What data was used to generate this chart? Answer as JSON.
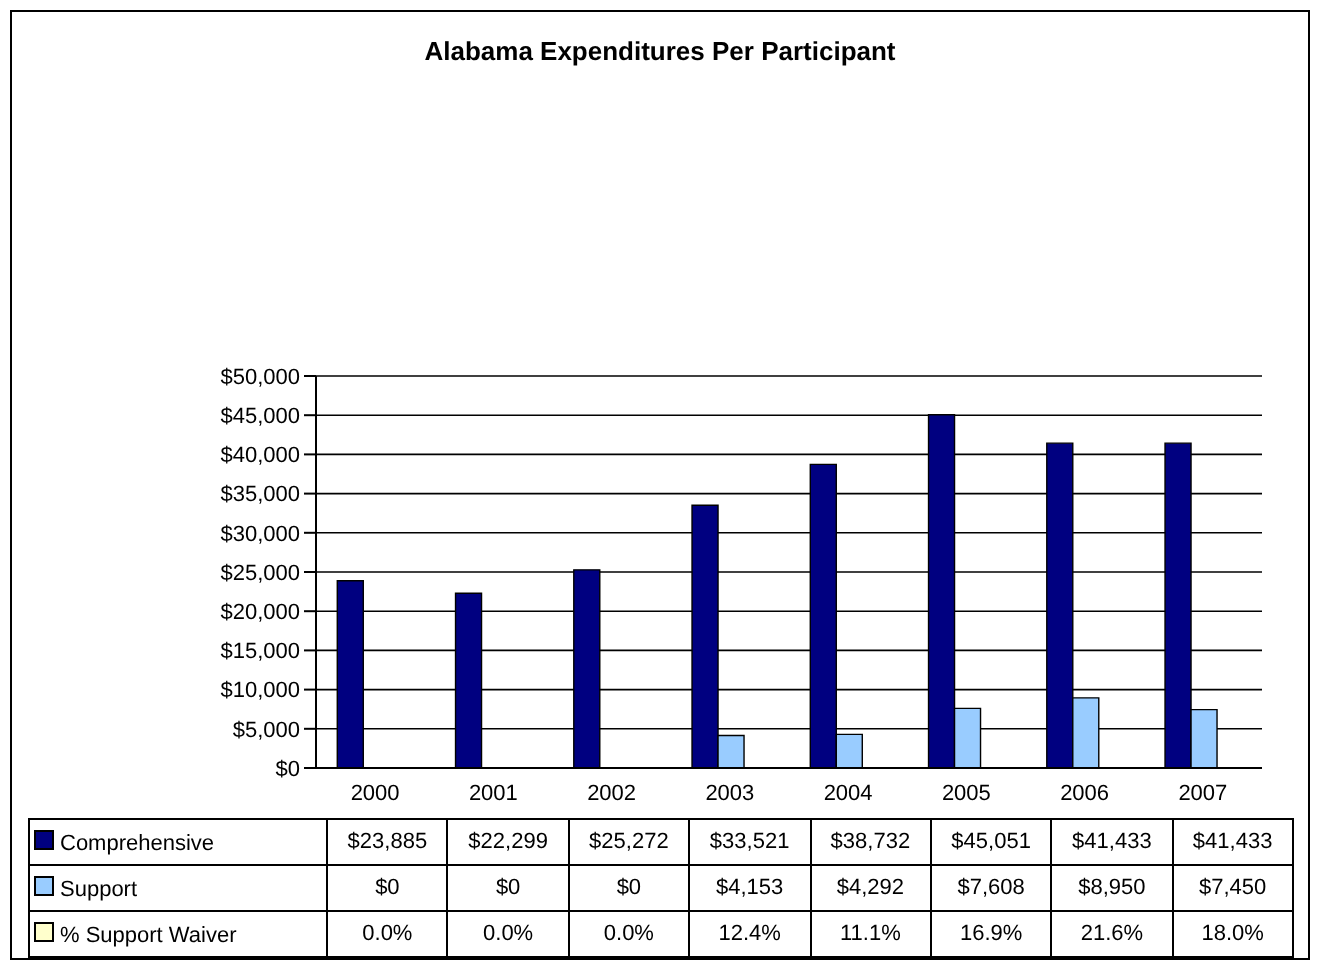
{
  "chart_data": {
    "type": "bar",
    "title": "Alabama Expenditures Per Participant",
    "categories": [
      "2000",
      "2001",
      "2002",
      "2003",
      "2004",
      "2005",
      "2006",
      "2007"
    ],
    "series": [
      {
        "name": "Comprehensive",
        "color": "#000080",
        "values": [
          23885,
          22299,
          25272,
          33521,
          38732,
          45051,
          41433,
          41433
        ],
        "value_labels": [
          "$23,885",
          "$22,299",
          "$25,272",
          "$33,521",
          "$38,732",
          "$45,051",
          "$41,433",
          "$41,433"
        ]
      },
      {
        "name": "Support",
        "color": "#99ccff",
        "values": [
          0,
          0,
          0,
          4153,
          4292,
          7608,
          8950,
          7450
        ],
        "value_labels": [
          "$0",
          "$0",
          "$0",
          "$4,153",
          "$4,292",
          "$7,608",
          "$8,950",
          "$7,450"
        ]
      },
      {
        "name": "% Support Waiver",
        "color": "#ffffcc",
        "values": [
          0.0,
          0.0,
          0.0,
          12.4,
          11.1,
          16.9,
          21.6,
          18.0
        ],
        "value_labels": [
          "0.0%",
          "0.0%",
          "0.0%",
          "12.4%",
          "11.1%",
          "16.9%",
          "21.6%",
          "18.0%"
        ]
      }
    ],
    "ylim": [
      0,
      50000
    ],
    "yticks": [
      {
        "value": 0,
        "label": "$0"
      },
      {
        "value": 5000,
        "label": "$5,000"
      },
      {
        "value": 10000,
        "label": "$10,000"
      },
      {
        "value": 15000,
        "label": "$15,000"
      },
      {
        "value": 20000,
        "label": "$20,000"
      },
      {
        "value": 25000,
        "label": "$25,000"
      },
      {
        "value": 30000,
        "label": "$30,000"
      },
      {
        "value": 35000,
        "label": "$35,000"
      },
      {
        "value": 40000,
        "label": "$40,000"
      },
      {
        "value": 45000,
        "label": "$45,000"
      },
      {
        "value": 50000,
        "label": "$50,000"
      }
    ],
    "grid": "y",
    "legend": "bottom",
    "data_labels": true
  }
}
